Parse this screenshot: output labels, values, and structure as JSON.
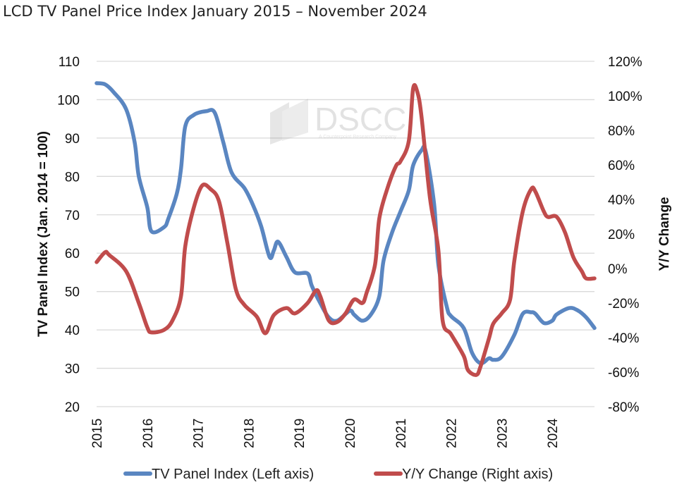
{
  "title": "LCD TV Panel Price Index January 2015 – November 2024",
  "watermark": {
    "text": "DSCC",
    "subtext": "A Counterpoint Research Company"
  },
  "chart_data": {
    "type": "line",
    "title": "LCD TV Panel Price Index January 2015 – November 2024",
    "xlabel": "",
    "ylabel": "TV Panel Index (Jan. 2014 = 100)",
    "y2label": "Y/Y Change",
    "xlim": [
      "2015-01",
      "2024-11"
    ],
    "ylim": [
      20,
      110
    ],
    "y2lim": [
      -80,
      120
    ],
    "x_ticks": [
      "2015",
      "2016",
      "2017",
      "2018",
      "2019",
      "2020",
      "2021",
      "2022",
      "2023",
      "2024"
    ],
    "y_ticks": [
      "20",
      "30",
      "40",
      "50",
      "60",
      "70",
      "80",
      "90",
      "100",
      "110"
    ],
    "y2_ticks": [
      "-80%",
      "-60%",
      "-40%",
      "-20%",
      "0%",
      "20%",
      "40%",
      "60%",
      "80%",
      "100%",
      "120%"
    ],
    "grid": true,
    "legend_position": "bottom",
    "series": [
      {
        "name": "TV Panel Index (Left axis)",
        "axis": "left",
        "color": "#5a86c1",
        "x": [
          "2015-01",
          "2015-03",
          "2015-05",
          "2015-08",
          "2015-10",
          "2015-11",
          "2016-01",
          "2016-02",
          "2016-05",
          "2016-06",
          "2016-08",
          "2016-09",
          "2016-10",
          "2016-12",
          "2017-03",
          "2017-05",
          "2017-07",
          "2017-09",
          "2017-12",
          "2018-02",
          "2018-04",
          "2018-06",
          "2018-07",
          "2018-08",
          "2018-10",
          "2018-12",
          "2019-03",
          "2019-04",
          "2019-06",
          "2019-08",
          "2019-10",
          "2020-01",
          "2020-02",
          "2020-04",
          "2020-06",
          "2020-08",
          "2020-09",
          "2020-11",
          "2021-01",
          "2021-03",
          "2021-04",
          "2021-06",
          "2021-07",
          "2021-09",
          "2021-10",
          "2021-12",
          "2022-01",
          "2022-04",
          "2022-06",
          "2022-08",
          "2022-10",
          "2022-11",
          "2023-01",
          "2023-04",
          "2023-06",
          "2023-08",
          "2023-09",
          "2023-11",
          "2024-01",
          "2024-02",
          "2024-05",
          "2024-07",
          "2024-09",
          "2024-11"
        ],
        "values": [
          104.3,
          104,
          102,
          97.5,
          89,
          80,
          72,
          65.7,
          66.8,
          69,
          75.5,
          82,
          93,
          96,
          97,
          96.6,
          89,
          81,
          77,
          72.7,
          67,
          59,
          60.7,
          63,
          59,
          55,
          54.7,
          51.5,
          47,
          43.3,
          42.4,
          45,
          44,
          42.4,
          44,
          48.8,
          58,
          65.3,
          70.8,
          76.4,
          82.8,
          86.8,
          86.5,
          72.7,
          57,
          46,
          43.6,
          40.5,
          34,
          31.3,
          32.6,
          32.2,
          33,
          38.7,
          44.2,
          44.6,
          44.2,
          41.8,
          42.4,
          44,
          45.7,
          45.1,
          43.3,
          40.5
        ]
      },
      {
        "name": "Y/Y Change (Right axis)",
        "axis": "right",
        "color": "#c04c4c",
        "x": [
          "2015-01",
          "2015-03",
          "2015-04",
          "2015-08",
          "2015-11",
          "2016-01",
          "2016-02",
          "2016-05",
          "2016-07",
          "2016-09",
          "2016-10",
          "2016-12",
          "2017-02",
          "2017-04",
          "2017-06",
          "2017-08",
          "2017-10",
          "2017-12",
          "2018-03",
          "2018-05",
          "2018-07",
          "2018-10",
          "2018-12",
          "2019-03",
          "2019-05",
          "2019-06",
          "2019-08",
          "2019-10",
          "2019-12",
          "2020-02",
          "2020-04",
          "2020-05",
          "2020-07",
          "2020-08",
          "2020-10",
          "2020-12",
          "2021-01",
          "2021-03",
          "2021-04",
          "2021-05",
          "2021-06",
          "2021-08",
          "2021-10",
          "2021-11",
          "2022-01",
          "2022-04",
          "2022-05",
          "2022-07",
          "2022-08",
          "2022-10",
          "2022-11",
          "2023-01",
          "2023-03",
          "2023-04",
          "2023-06",
          "2023-08",
          "2023-09",
          "2023-11",
          "2023-12",
          "2024-02",
          "2024-04",
          "2024-06",
          "2024-08",
          "2024-09",
          "2024-11"
        ],
        "values": [
          3.7,
          9.4,
          7.8,
          -1.6,
          -20,
          -34,
          -37,
          -35.5,
          -30,
          -16,
          12.7,
          35,
          48,
          46,
          39,
          14.7,
          -12,
          -21,
          -28,
          -37.5,
          -27,
          -22.9,
          -26,
          -20,
          -12.7,
          -16,
          -30,
          -31,
          -26,
          -18,
          -20,
          -14,
          2.4,
          29,
          47,
          59.6,
          62,
          74,
          104,
          102.4,
          88,
          41,
          10.6,
          -30,
          -38,
          -50.6,
          -58.8,
          -61.6,
          -56.7,
          -40.4,
          -32,
          -26,
          -18,
          4.5,
          33,
          46,
          44.5,
          33,
          29.8,
          30,
          21,
          6.5,
          -1.6,
          -5.7,
          -5.7
        ]
      }
    ]
  }
}
